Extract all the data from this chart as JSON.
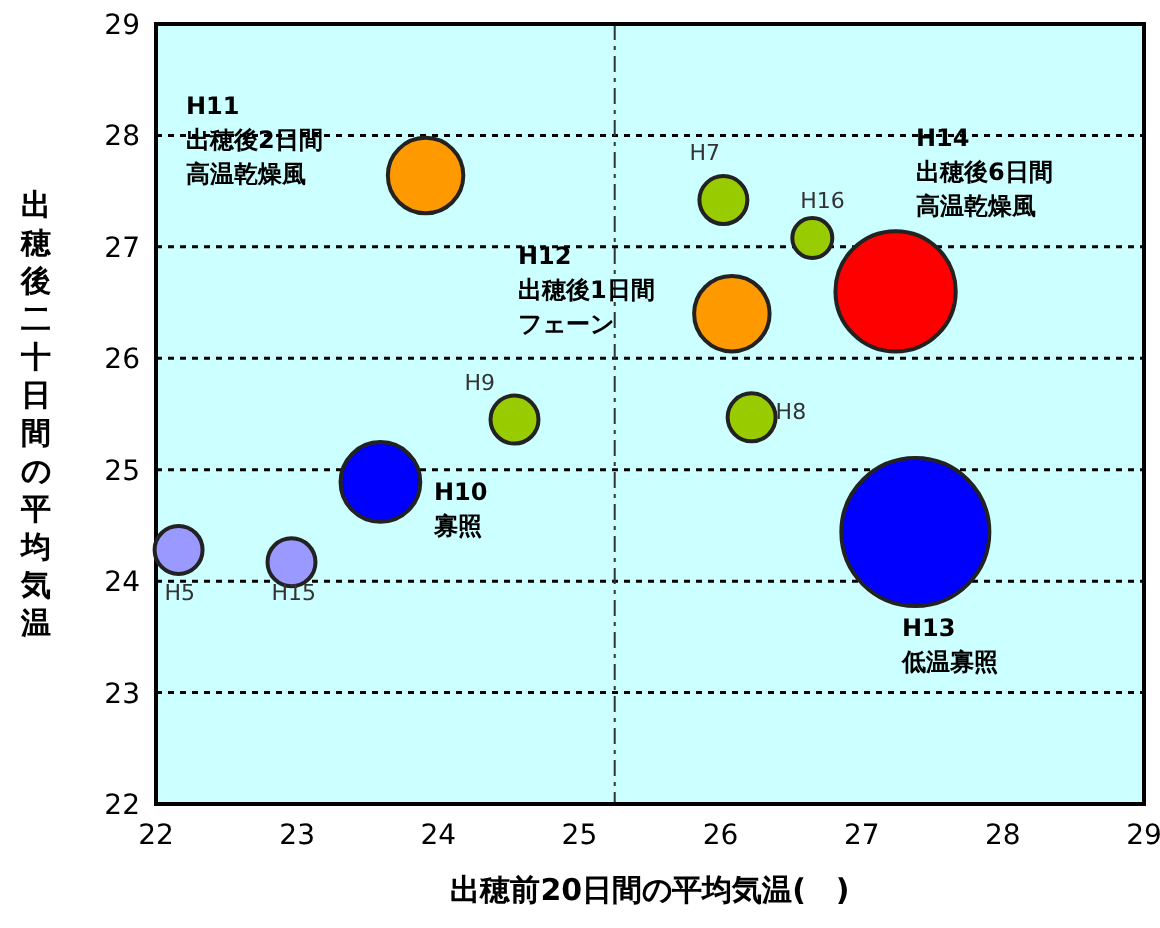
{
  "chart_data": {
    "type": "bubble",
    "xlabel": "出穂前20日間の平均気温(　)",
    "ylabel": "出穂後二十日間の平均気温",
    "x": [
      22.16,
      22.96,
      23.59,
      24.54,
      23.91,
      26.08,
      26.02,
      26.65,
      26.22,
      27.24,
      27.38
    ],
    "series": [
      {
        "values": [
          24.28,
          24.17,
          24.89,
          25.45,
          27.64,
          26.4,
          27.42,
          27.08,
          25.47,
          26.6,
          24.44
        ],
        "sizes": [
          0.105,
          0.105,
          0.29,
          0.105,
          0.26,
          0.26,
          0.105,
          0.073,
          0.105,
          0.66,
          1
        ],
        "colors": [
          "#9999ff",
          "#9999ff",
          "#0000ff",
          "#99cc00",
          "#ff9900",
          "#ff9900",
          "#99cc00",
          "#99cc00",
          "#99cc00",
          "#ff0000",
          "#0000ff"
        ]
      }
    ],
    "xlim": [
      22,
      29
    ],
    "xticks": [
      22,
      23,
      24,
      25,
      26,
      27,
      28,
      29
    ],
    "ylim": [
      22,
      29
    ],
    "yticks": [
      22,
      23,
      24,
      25,
      26,
      27,
      28,
      29
    ],
    "grid": "y",
    "ref_lines": [
      {
        "axis": "x",
        "value": 25.25,
        "line_style": "dashdot"
      }
    ],
    "annotations": [
      {
        "text": "H5",
        "x": 22.16,
        "y": 24.28
      },
      {
        "text": "H15",
        "x": 22.96,
        "y": 24.17
      },
      {
        "text": "H9",
        "x": 24.54,
        "y": 25.45
      },
      {
        "text": "H7",
        "x": 26.02,
        "y": 27.42
      },
      {
        "text": "H16",
        "x": 26.65,
        "y": 27.08
      },
      {
        "text": "H8",
        "x": 26.22,
        "y": 25.47
      },
      "H10",
      "寡照",
      "H11",
      "出穂後2日間",
      "高温乾燥風",
      "H12",
      "出穂後1日間",
      "フェーン",
      "H14",
      "出穂後6日間",
      "高温乾燥風",
      "H13",
      "低温寡照"
    ]
  }
}
